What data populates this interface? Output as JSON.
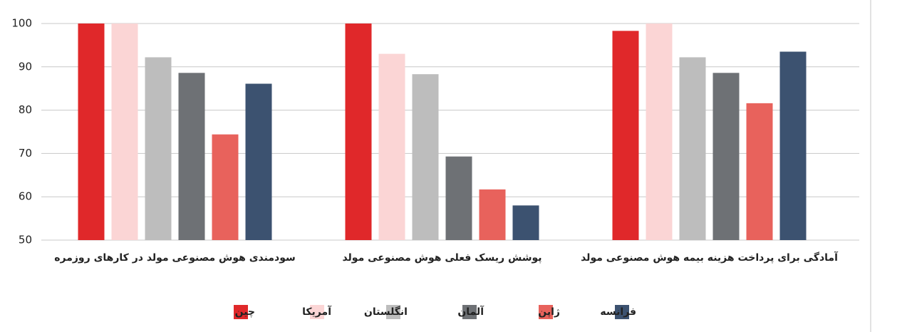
{
  "chart_data": {
    "type": "bar",
    "categories": [
      "سودمندی هوش مصنوعی مولد در کارهای روزمره",
      "پوشش ریسک فعلی هوش مصنوعی مولد",
      "آمادگی برای پرداخت هزینه بیمه هوش مصنوعی مولد"
    ],
    "series": [
      {
        "name": "چین",
        "color": "#e0282a",
        "values": [
          100,
          100,
          98.3
        ]
      },
      {
        "name": "آمریکا",
        "color": "#fbd5d5",
        "values": [
          100,
          93,
          100
        ]
      },
      {
        "name": "انگلستان",
        "color": "#bdbdbd",
        "values": [
          92.2,
          88.3,
          92.2
        ]
      },
      {
        "name": "آلمان",
        "color": "#6e7175",
        "values": [
          88.6,
          69.3,
          88.6
        ]
      },
      {
        "name": "ژاپن",
        "color": "#e8625c",
        "values": [
          74.4,
          61.7,
          81.6
        ]
      },
      {
        "name": "فرانسه",
        "color": "#3c5270",
        "values": [
          86.1,
          58,
          93.5
        ]
      }
    ],
    "ylim": [
      50,
      100
    ],
    "yticks": [
      50,
      60,
      70,
      80,
      90,
      100
    ],
    "grid": true,
    "legend": "bottom"
  }
}
